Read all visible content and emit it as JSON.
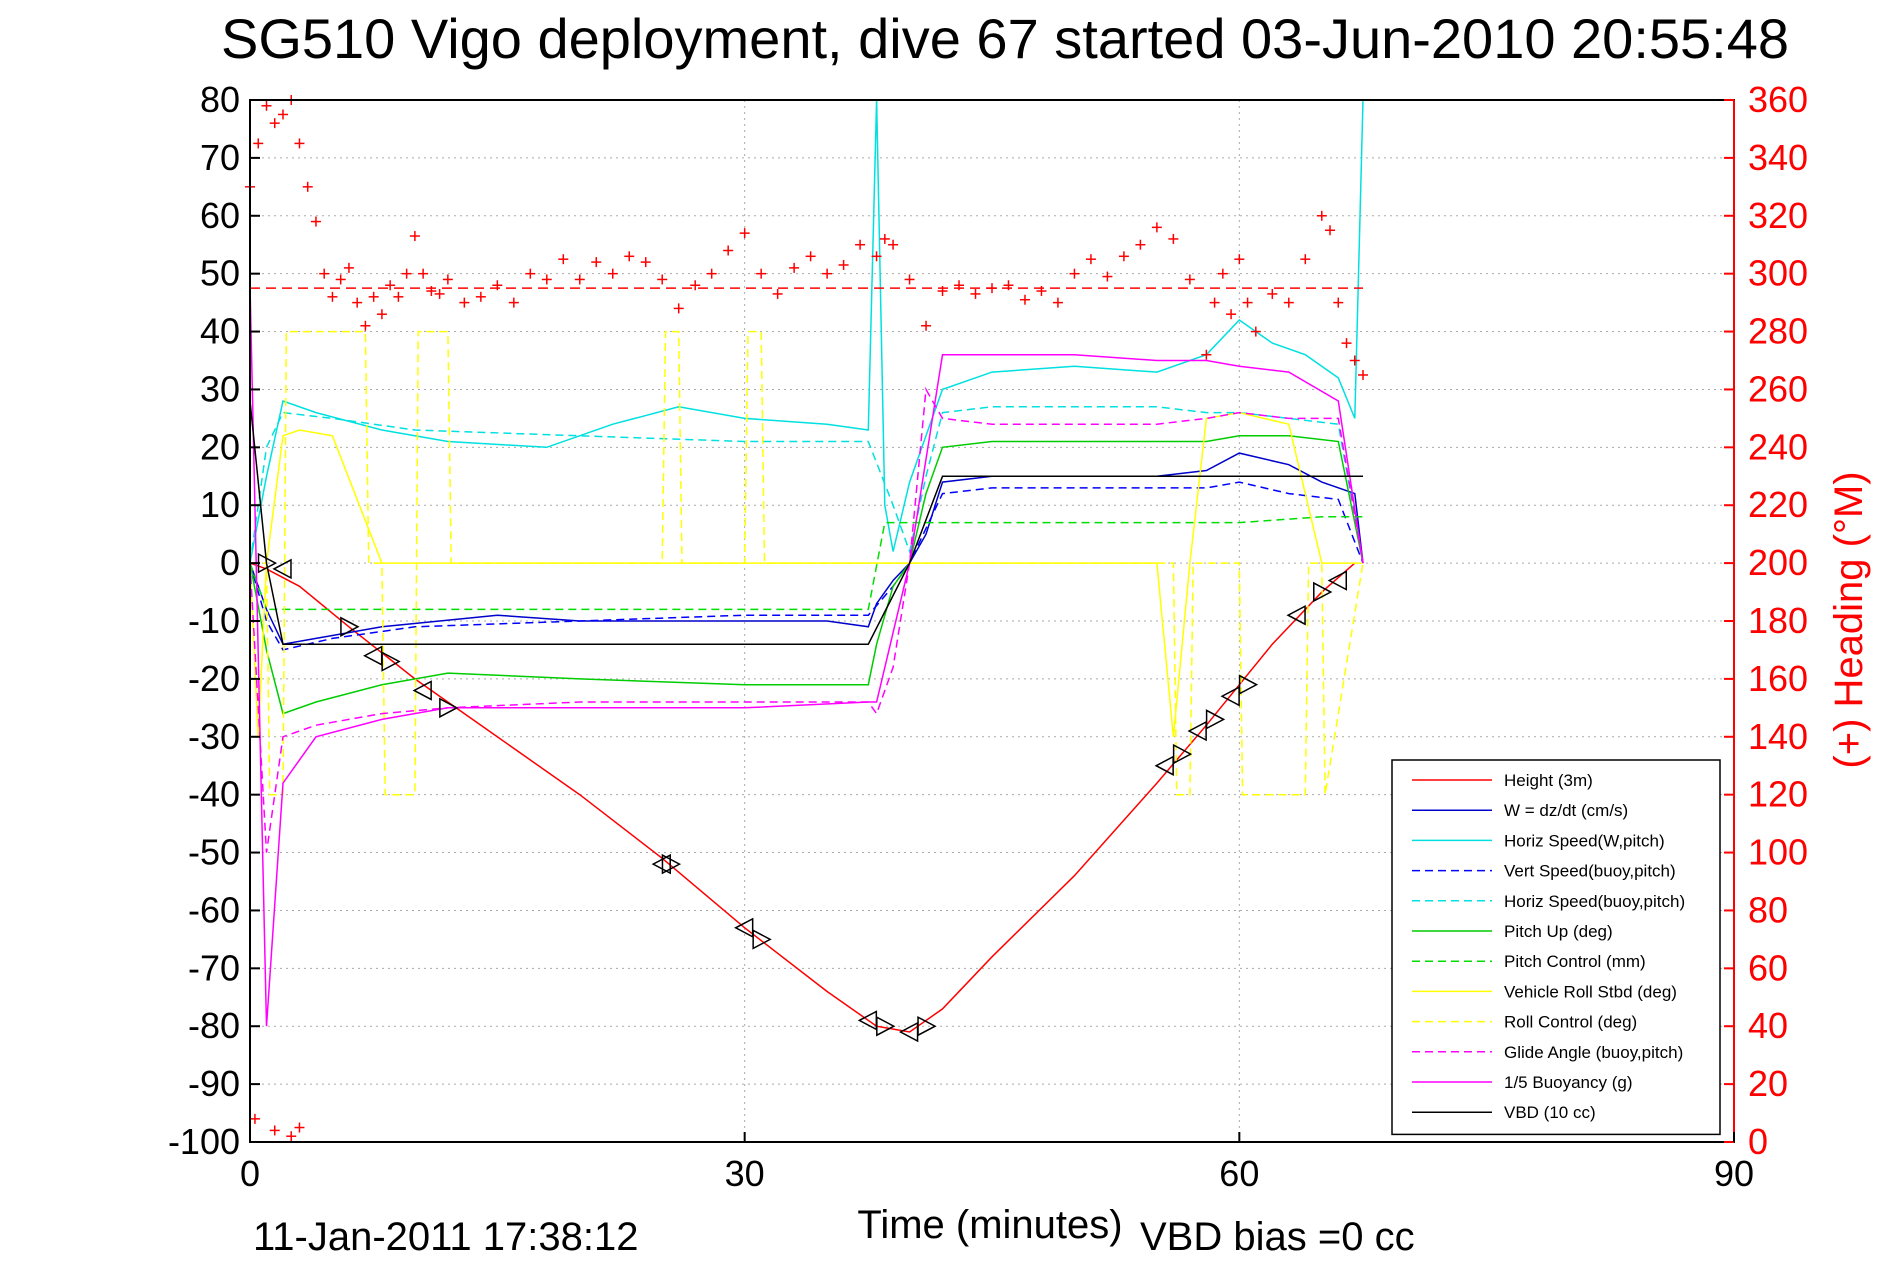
{
  "chart_data": {
    "type": "line",
    "title": "SG510 Vigo deployment, dive 67 started 03-Jun-2010 20:55:48",
    "xlabel": "Time (minutes)",
    "ylabel_right": "(+) Heading (°M)",
    "xlim": [
      0,
      90
    ],
    "ylim": [
      -100,
      80
    ],
    "ylim_right": [
      0,
      360
    ],
    "x_ticks": [
      "0",
      "30",
      "60",
      "90"
    ],
    "y_ticks": [
      "80",
      "70",
      "60",
      "50",
      "40",
      "30",
      "20",
      "10",
      "0",
      "-10",
      "-20",
      "-30",
      "-40",
      "-50",
      "-60",
      "-70",
      "-80",
      "-90",
      "-100"
    ],
    "y_ticks_right": [
      "360",
      "340",
      "320",
      "300",
      "280",
      "260",
      "240",
      "220",
      "200",
      "180",
      "160",
      "140",
      "120",
      "100",
      "80",
      "60",
      "40",
      "20",
      "0"
    ],
    "grid": true,
    "legend_position": "bottom-right",
    "footer_left": "11-Jan-2011 17:38:12",
    "footer_right": "VBD bias =0 cc",
    "series": [
      {
        "name": "Height (3m)",
        "color": "#ff0000",
        "style": "solid",
        "x": [
          0,
          1,
          3,
          6,
          10,
          15,
          20,
          25,
          30,
          35,
          38,
          40,
          42,
          45,
          50,
          55,
          58,
          62,
          65,
          67
        ],
        "y": [
          0,
          -1,
          -4,
          -11,
          -20,
          -30,
          -40,
          -51,
          -63,
          -74,
          -80,
          -81,
          -77,
          -68,
          -54,
          -38,
          -28,
          -14,
          -5,
          0
        ]
      },
      {
        "name": "W = dz/dt (cm/s)",
        "color": "#0000cc",
        "style": "solid",
        "x": [
          0,
          1,
          2,
          4,
          8,
          15,
          20,
          25,
          30,
          35,
          37.5,
          38,
          39,
          40,
          41,
          42,
          45,
          50,
          55,
          58,
          60,
          63,
          65,
          67,
          67.5
        ],
        "y": [
          0,
          -8,
          -14,
          -13,
          -11,
          -9,
          -10,
          -10,
          -10,
          -10,
          -11,
          -7,
          -3,
          0,
          5,
          14,
          15,
          15,
          15,
          16,
          19,
          17,
          14,
          12,
          0
        ]
      },
      {
        "name": "Horiz Speed(W,pitch)",
        "color": "#00e0e0",
        "style": "solid",
        "x": [
          0,
          1,
          2,
          4,
          8,
          12,
          18,
          22,
          26,
          30,
          35,
          37.5,
          38,
          38.5,
          39,
          40,
          41,
          42,
          45,
          50,
          55,
          58,
          60,
          62,
          64,
          66,
          67,
          67.5
        ],
        "y": [
          0,
          15,
          28,
          26,
          23,
          21,
          20,
          24,
          27,
          25,
          24,
          23,
          80,
          10,
          2,
          14,
          22,
          30,
          33,
          34,
          33,
          36,
          42,
          38,
          36,
          32,
          25,
          80
        ]
      },
      {
        "name": "Vert Speed(buoy,pitch)",
        "color": "#0000ff",
        "style": "dashed",
        "x": [
          0,
          1,
          2,
          5,
          10,
          20,
          30,
          37.5,
          39,
          40,
          41,
          42,
          45,
          50,
          55,
          58,
          60,
          63,
          66,
          67.5
        ],
        "y": [
          0,
          -10,
          -15,
          -13,
          -11,
          -10,
          -9,
          -9,
          -4,
          0,
          6,
          12,
          13,
          13,
          13,
          13,
          14,
          12,
          11,
          0
        ]
      },
      {
        "name": "Horiz Speed(buoy,pitch)",
        "color": "#00e0e0",
        "style": "dashed",
        "x": [
          0,
          1,
          2,
          5,
          10,
          20,
          30,
          37.5,
          39,
          40,
          41,
          42,
          45,
          50,
          55,
          58,
          60,
          63,
          66,
          67.5
        ],
        "y": [
          0,
          20,
          26,
          25,
          23,
          22,
          21,
          21,
          10,
          2,
          15,
          26,
          27,
          27,
          27,
          26,
          26,
          25,
          24,
          0
        ]
      },
      {
        "name": "Pitch Up (deg)",
        "color": "#00cc00",
        "style": "solid",
        "x": [
          0,
          1,
          2,
          4,
          8,
          12,
          20,
          30,
          37.5,
          38,
          39,
          40,
          41,
          42,
          45,
          50,
          55,
          58,
          60,
          63,
          66,
          67.5
        ],
        "y": [
          0,
          -15,
          -26,
          -24,
          -21,
          -19,
          -20,
          -21,
          -21,
          -14,
          -4,
          0,
          12,
          20,
          21,
          21,
          21,
          21,
          22,
          22,
          21,
          0
        ]
      },
      {
        "name": "Pitch Control (mm)",
        "color": "#00dd00",
        "style": "dashed",
        "x": [
          0,
          1,
          2,
          10,
          20,
          30,
          37.5,
          38.5,
          39,
          40,
          45,
          50,
          55,
          60,
          65,
          67.5
        ],
        "y": [
          0,
          -8,
          -8,
          -8,
          -8,
          -8,
          -8,
          7,
          7,
          7,
          7,
          7,
          7,
          7,
          8,
          8
        ]
      },
      {
        "name": "Vehicle Roll Stbd (deg)",
        "color": "#ffff00",
        "style": "solid",
        "x": [
          0,
          0.5,
          1,
          2,
          3,
          5,
          8,
          10,
          12,
          20,
          25,
          30,
          37.5,
          38,
          40,
          45,
          50,
          55,
          56,
          57,
          58,
          60,
          63,
          65,
          67,
          67.5
        ],
        "y": [
          0,
          -30,
          0,
          22,
          23,
          22,
          0,
          0,
          0,
          0,
          0,
          0,
          0,
          0,
          0,
          0,
          0,
          0,
          -30,
          0,
          25,
          26,
          24,
          0,
          0,
          0
        ]
      },
      {
        "name": "Roll Control (deg)",
        "color": "#ffff00",
        "style": "dashed",
        "x": [
          0,
          1,
          1.2,
          2,
          2.2,
          7,
          7.2,
          8,
          8.2,
          10,
          10.2,
          12,
          12.2,
          25,
          25.2,
          26,
          26.2,
          30,
          30.2,
          31,
          31.2,
          56,
          56.2,
          57,
          57.2,
          60,
          60.2,
          64,
          64.2,
          65,
          65.2,
          67.5
        ],
        "y": [
          0,
          0,
          -40,
          -40,
          40,
          40,
          0,
          0,
          -40,
          -40,
          40,
          40,
          0,
          0,
          40,
          40,
          0,
          0,
          40,
          40,
          0,
          0,
          -40,
          -40,
          0,
          0,
          -40,
          -40,
          0,
          0,
          -40,
          0
        ]
      },
      {
        "name": "Glide Angle (buoy,pitch)",
        "color": "#ff00ff",
        "style": "dashed",
        "x": [
          0,
          1,
          2,
          4,
          8,
          12,
          20,
          30,
          37.5,
          38,
          39,
          40,
          41,
          42,
          45,
          50,
          55,
          58,
          60,
          63,
          66,
          67.5
        ],
        "y": [
          0,
          -50,
          -30,
          -28,
          -26,
          -25,
          -24,
          -24,
          -24,
          -26,
          -18,
          0,
          30,
          25,
          24,
          24,
          24,
          25,
          26,
          25,
          25,
          0
        ]
      },
      {
        "name": "1/5 Buoyancy (g)",
        "color": "#ff00ff",
        "style": "solid",
        "x": [
          0,
          1,
          2,
          4,
          8,
          12,
          20,
          30,
          37.5,
          38,
          40,
          42,
          45,
          50,
          55,
          58,
          60,
          63,
          66,
          67.5
        ],
        "y": [
          48,
          -80,
          -38,
          -30,
          -27,
          -25,
          -25,
          -25,
          -24,
          -24,
          0,
          36,
          36,
          36,
          35,
          35,
          34,
          33,
          28,
          0
        ]
      },
      {
        "name": "VBD (10 cc)",
        "color": "#000000",
        "style": "solid",
        "x": [
          0,
          1,
          2,
          20,
          37.5,
          40,
          42,
          67.5
        ],
        "y": [
          28,
          0,
          -14,
          -14,
          -14,
          0,
          15,
          15
        ]
      }
    ],
    "heading_series": {
      "color": "#ff0000",
      "marker": "+",
      "mean_heading": 295,
      "x": [
        0,
        0.5,
        1,
        1.5,
        2,
        2.5,
        3,
        3.5,
        4,
        4.5,
        5,
        5.5,
        6,
        6.5,
        7,
        7.5,
        8,
        8.5,
        9,
        9.5,
        10,
        10.5,
        11,
        11.5,
        12,
        13,
        14,
        15,
        16,
        17,
        18,
        19,
        20,
        21,
        22,
        23,
        24,
        25,
        26,
        27,
        28,
        29,
        30,
        31,
        32,
        33,
        34,
        35,
        36,
        37,
        38,
        38.5,
        39,
        40,
        41,
        42,
        43,
        44,
        45,
        46,
        47,
        48,
        49,
        50,
        51,
        52,
        53,
        54,
        55,
        56,
        57,
        58,
        58.5,
        59,
        59.5,
        60,
        60.5,
        61,
        62,
        63,
        64,
        65,
        65.5,
        66,
        66.5,
        67,
        67.5
      ],
      "y": [
        330,
        345,
        358,
        352,
        355,
        360,
        345,
        330,
        318,
        300,
        292,
        298,
        302,
        290,
        282,
        292,
        286,
        296,
        292,
        300,
        313,
        300,
        294,
        293,
        298,
        290,
        292,
        296,
        290,
        300,
        298,
        305,
        298,
        304,
        300,
        306,
        304,
        298,
        288,
        296,
        300,
        308,
        314,
        300,
        293,
        302,
        306,
        300,
        303,
        310,
        306,
        312,
        310,
        298,
        282,
        294,
        296,
        293,
        295,
        296,
        291,
        294,
        290,
        300,
        305,
        299,
        306,
        310,
        316,
        312,
        298,
        272,
        290,
        300,
        286,
        305,
        290,
        280,
        293,
        290,
        305,
        320,
        315,
        290,
        276,
        270,
        265
      ]
    },
    "heading_outliers": {
      "x": [
        0.3,
        1.5,
        2.5,
        3
      ],
      "y": [
        8,
        4,
        2,
        5
      ]
    },
    "markers": {
      "symbol": "triangle",
      "color": "#000000",
      "x": [
        1,
        2,
        6,
        7.5,
        8.5,
        10.5,
        12,
        25,
        25.5,
        30,
        31,
        37.5,
        38.5,
        40,
        41,
        55.5,
        56.5,
        57.5,
        58.5,
        59.5,
        60.5,
        63.5,
        65,
        66
      ],
      "y": [
        0,
        -1,
        -11,
        -16,
        -17,
        -22,
        -25,
        -52,
        -52,
        -63,
        -65,
        -79,
        -80,
        -81,
        -80,
        -35,
        -33,
        -29,
        -27,
        -23,
        -21,
        -9,
        -5,
        -3
      ]
    }
  }
}
